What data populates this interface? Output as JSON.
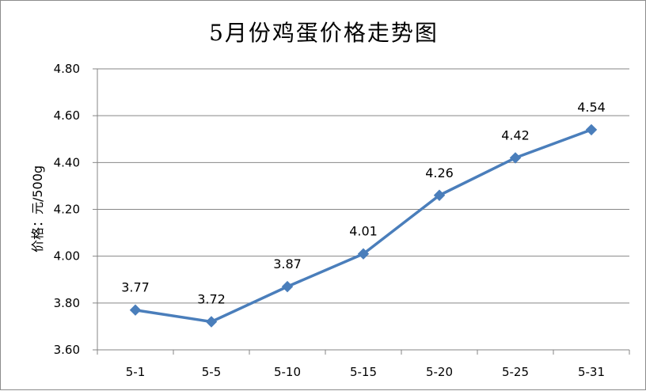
{
  "chart_data": {
    "type": "line",
    "title": "5月份鸡蛋价格走势图",
    "xlabel": "",
    "ylabel": "价格：元/500g",
    "categories": [
      "5-1",
      "5-5",
      "5-10",
      "5-15",
      "5-20",
      "5-25",
      "5-31"
    ],
    "values": [
      3.77,
      3.72,
      3.87,
      4.01,
      4.26,
      4.42,
      4.54
    ],
    "data_labels": [
      "3.77",
      "3.72",
      "3.87",
      "4.01",
      "4.26",
      "4.42",
      "4.54"
    ],
    "ylim": [
      3.6,
      4.8
    ],
    "yticks": [
      "3.60",
      "3.80",
      "4.00",
      "4.20",
      "4.40",
      "4.60",
      "4.80"
    ],
    "grid": true,
    "legend": "none",
    "series_color": "#4a7ebb",
    "marker": "diamond"
  }
}
